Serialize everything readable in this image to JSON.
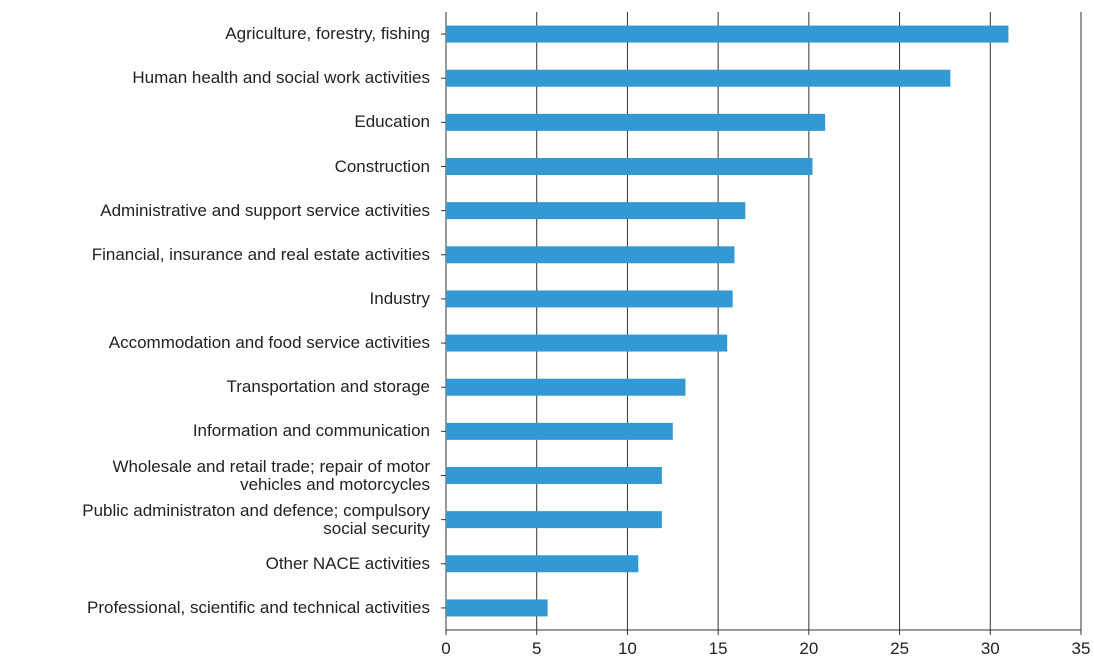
{
  "chart_data": {
    "type": "barh",
    "categories": [
      "Agriculture, forestry, fishing",
      "Human health and social work activities",
      "Education",
      "Construction",
      "Administrative and support service activities",
      "Financial, insurance and real estate activities",
      "Industry",
      "Accommodation and food service activities",
      "Transportation and storage",
      "Information and communication",
      "Wholesale and retail trade; repair of motor\nvehicles and motorcycles",
      "Public administraton and defence; compulsory\nsocial security",
      "Other NACE activities",
      "Professional, scientific and technical activities"
    ],
    "values": [
      31.0,
      27.8,
      20.9,
      20.2,
      16.5,
      15.9,
      15.8,
      15.5,
      13.2,
      12.5,
      11.9,
      11.9,
      10.6,
      5.6
    ],
    "color": "#3399d4",
    "xlim": [
      0,
      35
    ],
    "xticks": [
      0,
      5,
      10,
      15,
      20,
      25,
      30,
      35
    ],
    "grid": true
  }
}
